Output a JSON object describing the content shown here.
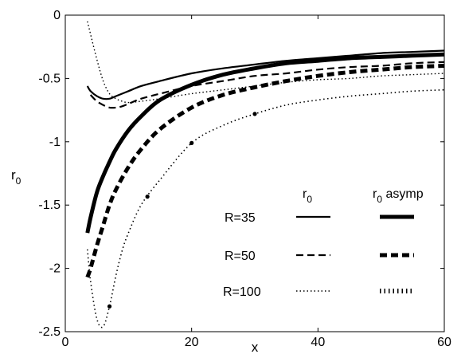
{
  "chart_data": {
    "type": "line",
    "title": "",
    "xlabel": "x",
    "ylabel": "r",
    "ylabel_sub": "0",
    "xlim": [
      0,
      60
    ],
    "ylim": [
      -2.5,
      0
    ],
    "xticks": [
      0,
      20,
      40,
      60
    ],
    "xtick_labels": [
      "0",
      "20",
      "40",
      "60"
    ],
    "yticks": [
      0,
      -0.5,
      -1,
      -1.5,
      -2,
      -2.5
    ],
    "ytick_labels": [
      "0",
      "-0.5",
      "-1",
      "-1.5",
      "-2",
      "-2.5"
    ],
    "grid": false,
    "legend": {
      "position": "bottom-right",
      "col1_header": "r",
      "col1_header_sub": "0",
      "col2_header": "r",
      "col2_header_sub": "0",
      "col2_header_suffix": " asymp",
      "rows": [
        {
          "label": "R=35"
        },
        {
          "label": "R=50"
        },
        {
          "label": "R=100"
        }
      ]
    },
    "series": [
      {
        "key": "r0_R35",
        "style": "solid-thin",
        "x": [
          3.5,
          4,
          5,
          6,
          7,
          8,
          10,
          12,
          15,
          20,
          25,
          30,
          35,
          40,
          45,
          50,
          55,
          60
        ],
        "y": [
          -0.56,
          -0.6,
          -0.64,
          -0.66,
          -0.66,
          -0.64,
          -0.6,
          -0.56,
          -0.52,
          -0.46,
          -0.42,
          -0.39,
          -0.36,
          -0.34,
          -0.32,
          -0.3,
          -0.29,
          -0.28
        ]
      },
      {
        "key": "r0_R50",
        "style": "dashed-thin",
        "x": [
          4,
          5,
          6,
          7,
          8,
          9,
          10,
          12,
          15,
          20,
          25,
          30,
          35,
          40,
          45,
          50,
          55,
          60
        ],
        "y": [
          -0.63,
          -0.68,
          -0.71,
          -0.73,
          -0.73,
          -0.72,
          -0.7,
          -0.66,
          -0.62,
          -0.56,
          -0.52,
          -0.48,
          -0.46,
          -0.43,
          -0.41,
          -0.4,
          -0.38,
          -0.37
        ]
      },
      {
        "key": "r0_R100",
        "style": "dotted-thin",
        "x": [
          3.5,
          4,
          5,
          6,
          7,
          8,
          9,
          10,
          12,
          15,
          20,
          25,
          30,
          35,
          40,
          45,
          50,
          55,
          60
        ],
        "y": [
          -0.05,
          -0.15,
          -0.35,
          -0.52,
          -0.62,
          -0.66,
          -0.68,
          -0.69,
          -0.68,
          -0.66,
          -0.62,
          -0.59,
          -0.56,
          -0.53,
          -0.51,
          -0.5,
          -0.48,
          -0.47,
          -0.46
        ]
      },
      {
        "key": "asymp_R35",
        "style": "solid-thick",
        "x": [
          3.5,
          4,
          5,
          6,
          7,
          8,
          10,
          12,
          15,
          20,
          25,
          30,
          35,
          40,
          45,
          50,
          55,
          60
        ],
        "y": [
          -1.72,
          -1.6,
          -1.4,
          -1.27,
          -1.16,
          -1.06,
          -0.91,
          -0.8,
          -0.67,
          -0.55,
          -0.47,
          -0.42,
          -0.38,
          -0.36,
          -0.34,
          -0.33,
          -0.32,
          -0.31
        ]
      },
      {
        "key": "asymp_R50",
        "style": "dashed-thick",
        "x": [
          3.5,
          4,
          5,
          6,
          7,
          8,
          10,
          12,
          15,
          20,
          25,
          30,
          35,
          40,
          45,
          50,
          55,
          60
        ],
        "y": [
          -2.07,
          -2.0,
          -1.82,
          -1.66,
          -1.5,
          -1.38,
          -1.2,
          -1.06,
          -0.9,
          -0.73,
          -0.63,
          -0.57,
          -0.52,
          -0.48,
          -0.45,
          -0.43,
          -0.41,
          -0.4
        ]
      },
      {
        "key": "asymp_R100",
        "style": "dotted-dense",
        "x": [
          3.5,
          4,
          5,
          6,
          7,
          8,
          9,
          10,
          12,
          15,
          20,
          25,
          30,
          35,
          40,
          45,
          50,
          55,
          60
        ],
        "y": [
          -1.85,
          -2.1,
          -2.4,
          -2.46,
          -2.3,
          -2.06,
          -1.86,
          -1.72,
          -1.5,
          -1.3,
          -1.01,
          -0.87,
          -0.78,
          -0.71,
          -0.67,
          -0.64,
          -0.62,
          -0.6,
          -0.59
        ]
      }
    ]
  }
}
